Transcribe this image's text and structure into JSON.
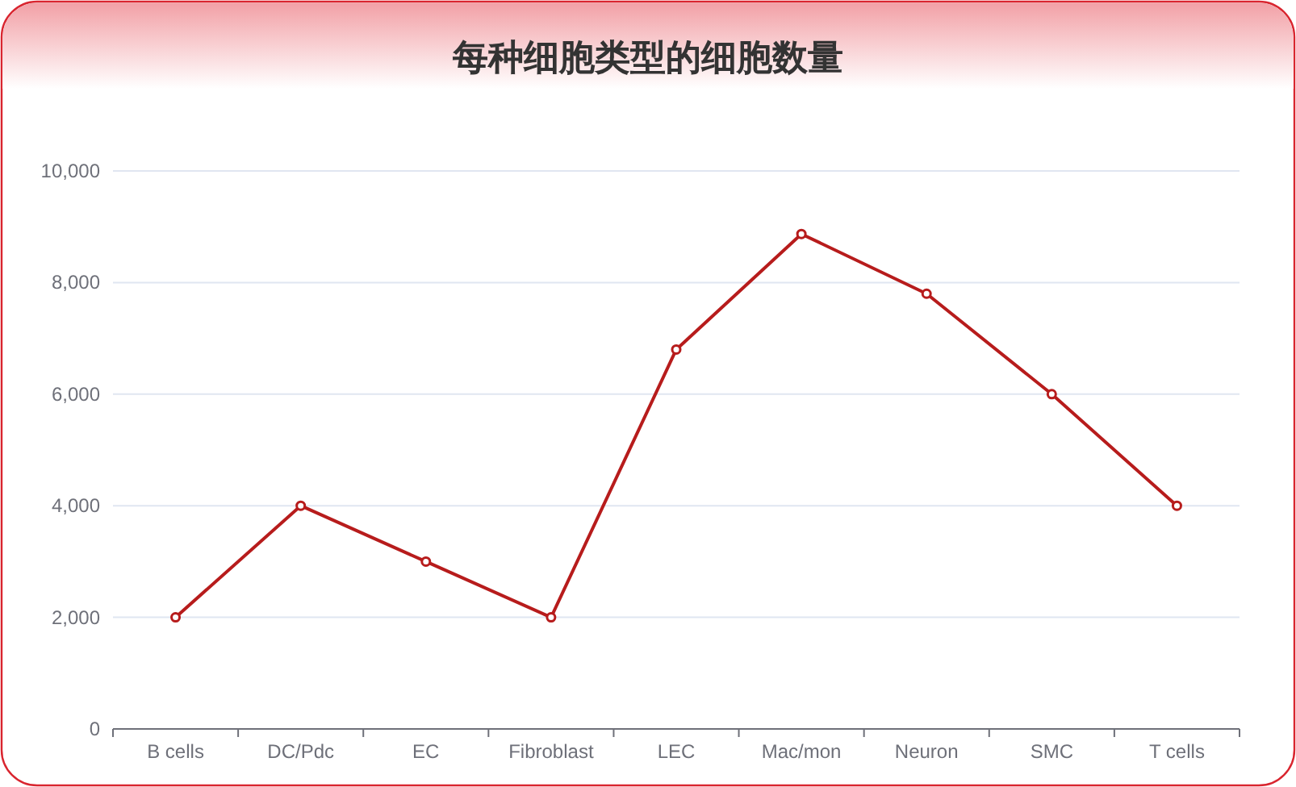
{
  "chart_data": {
    "type": "line",
    "title": "每种细胞类型的细胞数量",
    "categories": [
      "B cells",
      "DC/Pdc",
      "EC",
      "Fibroblast",
      "LEC",
      "Mac/mon",
      "Neuron",
      "SMC",
      "T cells"
    ],
    "series": [
      {
        "color": "#b71c1c",
        "values": [
          2000,
          4000,
          3000,
          2000,
          6800,
          8870,
          7800,
          6000,
          4000
        ]
      }
    ],
    "ylim": [
      0,
      10000
    ],
    "yticks": [
      {
        "value": 0,
        "label": "0"
      },
      {
        "value": 2000,
        "label": "2,000"
      },
      {
        "value": 4000,
        "label": "4,000"
      },
      {
        "value": 6000,
        "label": "6,000"
      },
      {
        "value": 8000,
        "label": "8,000"
      },
      {
        "value": 10000,
        "label": "10,000"
      }
    ],
    "grid": "y",
    "marker": "circle",
    "line_style": "solid"
  }
}
